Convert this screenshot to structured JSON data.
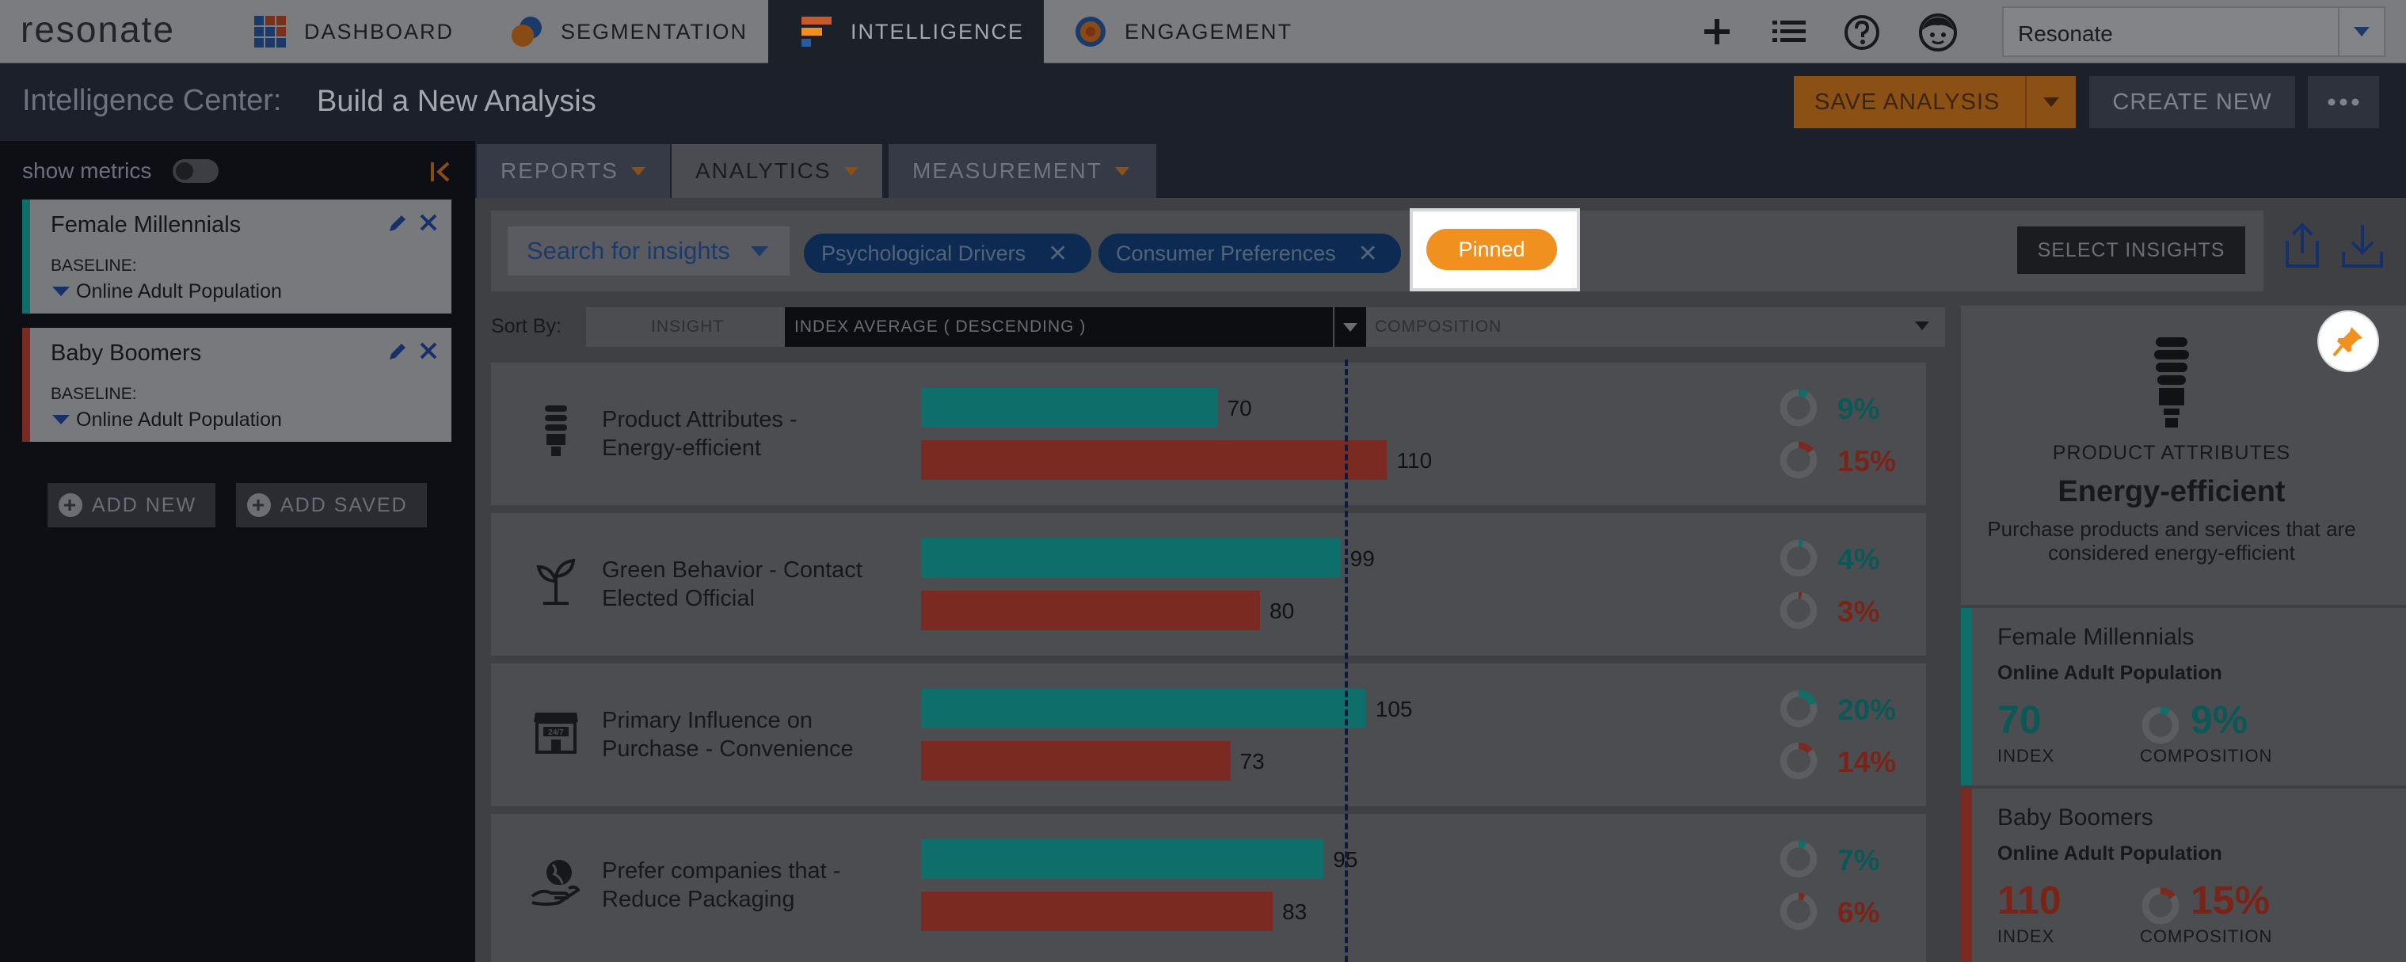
{
  "app": {
    "logo": "resonate",
    "nav": [
      {
        "label": "DASHBOARD",
        "icon": "dashboard-grid-icon"
      },
      {
        "label": "SEGMENTATION",
        "icon": "segmentation-circles-icon"
      },
      {
        "label": "INTELLIGENCE",
        "icon": "intelligence-bars-icon",
        "active": true
      },
      {
        "label": "ENGAGEMENT",
        "icon": "engagement-target-icon"
      }
    ],
    "account_select": "Resonate"
  },
  "header": {
    "title_label": "Intelligence Center:",
    "title_value": "Build a New Analysis",
    "save_label": "SAVE ANALYSIS",
    "create_label": "CREATE NEW"
  },
  "sidebar": {
    "show_metrics_label": "show metrics",
    "segments": [
      {
        "name": "Female Millennials",
        "baseline_label": "BASELINE:",
        "baseline": "Online Adult Population",
        "color": "#0e6e6a"
      },
      {
        "name": "Baby Boomers",
        "baseline_label": "BASELINE:",
        "baseline": "Online Adult Population",
        "color": "#7a2a20"
      }
    ],
    "add_new_label": "ADD NEW",
    "add_saved_label": "ADD SAVED"
  },
  "tabs": [
    {
      "label": "REPORTS"
    },
    {
      "label": "ANALYTICS",
      "active": true
    },
    {
      "label": "MEASUREMENT"
    }
  ],
  "filters": {
    "search_placeholder": "Search for insights",
    "chips": [
      "Psychological Drivers",
      "Consumer Preferences"
    ],
    "pinned_label": "Pinned",
    "select_insights_label": "SELECT INSIGHTS"
  },
  "sort": {
    "label": "Sort By:",
    "insight_col": "INSIGHT",
    "index_col": "INDEX AVERAGE ( DESCENDING )",
    "composition_col": "COMPOSITION"
  },
  "insights": [
    {
      "label_line1": "Product Attributes -",
      "label_line2": "Energy-efficient",
      "icon": "lightbulb-icon",
      "idx_a": 70,
      "idx_b": 110,
      "comp_a": "9%",
      "comp_b": "15%",
      "comp_a_val": 9,
      "comp_b_val": 15
    },
    {
      "label_line1": "Green Behavior - Contact",
      "label_line2": "Elected Official",
      "icon": "sprout-icon",
      "idx_a": 99,
      "idx_b": 80,
      "comp_a": "4%",
      "comp_b": "3%",
      "comp_a_val": 4,
      "comp_b_val": 3
    },
    {
      "label_line1": "Primary Influence on",
      "label_line2": "Purchase - Convenience",
      "icon": "store-24-7-icon",
      "idx_a": 105,
      "idx_b": 73,
      "comp_a": "20%",
      "comp_b": "14%",
      "comp_a_val": 20,
      "comp_b_val": 14
    },
    {
      "label_line1": "Prefer companies that -",
      "label_line2": "Reduce Packaging",
      "icon": "hand-globe-icon",
      "idx_a": 95,
      "idx_b": 83,
      "comp_a": "7%",
      "comp_b": "6%",
      "comp_a_val": 7,
      "comp_b_val": 6
    }
  ],
  "detail": {
    "category": "PRODUCT ATTRIBUTES",
    "title": "Energy-efficient",
    "desc_line1": "Purchase products and services that are",
    "desc_line2": "considered energy-efficient",
    "segments": [
      {
        "name": "Female Millennials",
        "baseline": "Online Adult Population",
        "index": "70",
        "index_label": "INDEX",
        "comp": "9%",
        "comp_val": 9,
        "comp_label": "COMPOSITION"
      },
      {
        "name": "Baby Boomers",
        "baseline": "Online Adult Population",
        "index": "110",
        "index_label": "INDEX",
        "comp": "15%",
        "comp_val": 15,
        "comp_label": "COMPOSITION"
      }
    ]
  },
  "colors": {
    "teal": "#0e6e6a",
    "red": "#7a2a20",
    "teal_text": "#0c5856",
    "red_text": "#7a2418",
    "accent_orange": "#f0901f"
  }
}
